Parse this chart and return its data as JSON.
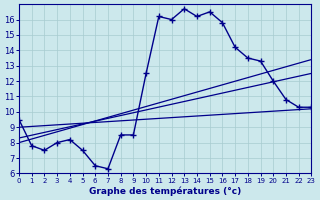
{
  "xlabel": "Graphe des températures (°c)",
  "background_color": "#cce8ec",
  "line_color": "#00008b",
  "grid_color": "#a8ccd0",
  "hours": [
    0,
    1,
    2,
    3,
    4,
    5,
    6,
    7,
    8,
    9,
    10,
    11,
    12,
    13,
    14,
    15,
    16,
    17,
    18,
    19,
    20,
    21,
    22,
    23
  ],
  "temps": [
    9.5,
    7.8,
    7.5,
    8.0,
    8.2,
    7.5,
    6.5,
    6.3,
    8.5,
    8.5,
    12.5,
    16.2,
    16.0,
    16.7,
    16.2,
    16.5,
    15.8,
    14.2,
    13.5,
    13.3,
    12.0,
    10.8,
    10.3,
    10.3
  ],
  "trend_lines": [
    {
      "x0": 0,
      "y0": 9.0,
      "x1": 23,
      "y1": 10.2
    },
    {
      "x0": 0,
      "y0": 8.3,
      "x1": 23,
      "y1": 12.5
    },
    {
      "x0": 0,
      "y0": 8.0,
      "x1": 23,
      "y1": 13.4
    }
  ],
  "ylim_min": 6,
  "ylim_max": 17,
  "yticks": [
    6,
    7,
    8,
    9,
    10,
    11,
    12,
    13,
    14,
    15,
    16
  ],
  "xlim_min": 0,
  "xlim_max": 23
}
